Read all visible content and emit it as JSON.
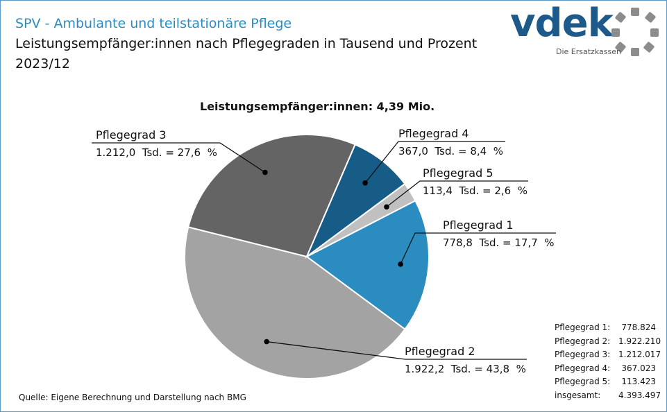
{
  "header": {
    "title": "SPV - Ambulante und teilstationäre Pflege",
    "subtitle": "Leistungsempfänger:innen  nach Pflegegraden in Tausend und Prozent",
    "period": "2023/12"
  },
  "logo": {
    "word": "vdek",
    "tagline": "Die Ersatzkassen"
  },
  "chart_data": {
    "type": "pie",
    "title": "Leistungsempfänger:innen:  4,39  Mio.",
    "categories": [
      "Pflegegrad 1",
      "Pflegegrad 2",
      "Pflegegrad 3",
      "Pflegegrad 4",
      "Pflegegrad 5"
    ],
    "values": [
      778.8,
      1922.2,
      1212.0,
      367.0,
      113.4
    ],
    "percent": [
      17.7,
      43.8,
      27.6,
      8.4,
      2.6
    ],
    "labels": [
      {
        "name": "Pflegegrad 1",
        "value_text": "778,8  Tsd. = 17,7  %"
      },
      {
        "name": "Pflegegrad 2",
        "value_text": "1.922,2  Tsd. = 43,8  %"
      },
      {
        "name": "Pflegegrad 3",
        "value_text": "1.212,0  Tsd. = 27,6  %"
      },
      {
        "name": "Pflegegrad 4",
        "value_text": "367,0  Tsd. = 8,4  %"
      },
      {
        "name": "Pflegegrad 5",
        "value_text": "113,4  Tsd. = 2,6  %"
      }
    ],
    "colors": [
      "#2b8cc0",
      "#a3a3a3",
      "#646464",
      "#175b87",
      "#c0c0c0"
    ]
  },
  "summary_table": {
    "rows": [
      {
        "label": "Pflegegrad 1:",
        "value": "778.824"
      },
      {
        "label": "Pflegegrad 2:",
        "value": "1.922.210"
      },
      {
        "label": "Pflegegrad 3:",
        "value": "1.212.017"
      },
      {
        "label": "Pflegegrad 4:",
        "value": "367.023"
      },
      {
        "label": "Pflegegrad 5:",
        "value": "113.423"
      },
      {
        "label": "insgesamt:",
        "value": "4.393.497"
      }
    ]
  },
  "source": "Quelle: Eigene Berechnung und Darstellung nach BMG"
}
